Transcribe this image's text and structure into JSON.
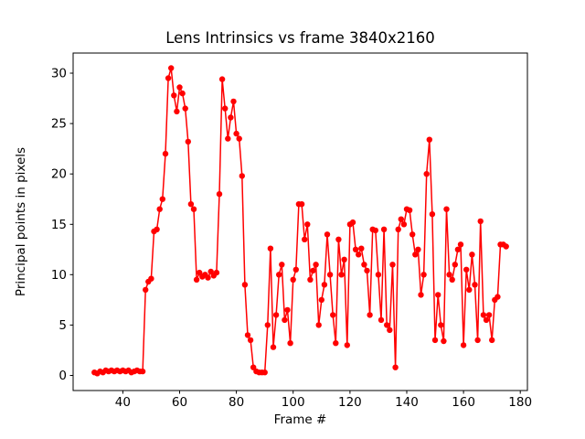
{
  "chart_data": {
    "type": "line",
    "title": "Lens Intrinsics vs frame 3840x2160",
    "xlabel": "Frame #",
    "ylabel": "Principal points in pixels",
    "xlim": [
      22.5,
      182.5
    ],
    "ylim": [
      -1.5,
      32.0
    ],
    "xticks": [
      40,
      60,
      80,
      100,
      120,
      140,
      160,
      180
    ],
    "yticks": [
      0,
      5,
      10,
      15,
      20,
      25,
      30
    ],
    "grid": false,
    "legend": "none",
    "line_color": "#ff0000",
    "marker": "circle",
    "x": [
      30,
      31,
      32,
      33,
      34,
      35,
      36,
      37,
      38,
      39,
      40,
      41,
      42,
      43,
      44,
      45,
      46,
      47,
      48,
      49,
      50,
      51,
      52,
      53,
      54,
      55,
      56,
      57,
      58,
      59,
      60,
      61,
      62,
      63,
      64,
      65,
      66,
      67,
      68,
      69,
      70,
      71,
      72,
      73,
      74,
      75,
      76,
      77,
      78,
      79,
      80,
      81,
      82,
      83,
      84,
      85,
      86,
      87,
      88,
      89,
      90,
      91,
      92,
      93,
      94,
      95,
      96,
      97,
      98,
      99,
      100,
      101,
      102,
      103,
      104,
      105,
      106,
      107,
      108,
      109,
      110,
      111,
      112,
      113,
      114,
      115,
      116,
      117,
      118,
      119,
      120,
      121,
      122,
      123,
      124,
      125,
      126,
      127,
      128,
      129,
      130,
      131,
      132,
      133,
      134,
      135,
      136,
      137,
      138,
      139,
      140,
      141,
      142,
      143,
      144,
      145,
      146,
      147,
      148,
      149,
      150,
      151,
      152,
      153,
      154,
      155,
      156,
      157,
      158,
      159,
      160,
      161,
      162,
      163,
      164,
      165,
      166,
      167,
      168,
      169,
      170,
      171,
      172,
      173,
      174,
      175
    ],
    "y": [
      0.3,
      0.2,
      0.4,
      0.3,
      0.5,
      0.4,
      0.5,
      0.4,
      0.5,
      0.4,
      0.5,
      0.4,
      0.5,
      0.3,
      0.4,
      0.5,
      0.4,
      0.4,
      8.5,
      9.3,
      9.6,
      14.3,
      14.5,
      16.5,
      17.5,
      22.0,
      29.5,
      30.5,
      27.8,
      26.2,
      28.6,
      28.0,
      26.5,
      23.2,
      17.0,
      16.5,
      9.5,
      10.2,
      9.8,
      10.0,
      9.7,
      10.3,
      9.9,
      10.2,
      18.0,
      29.4,
      26.5,
      23.5,
      25.6,
      27.2,
      24.0,
      23.5,
      19.8,
      9.0,
      4.0,
      3.5,
      0.8,
      0.4,
      0.3,
      0.3,
      0.3,
      5.0,
      12.6,
      2.8,
      6.0,
      10.0,
      11.0,
      5.5,
      6.5,
      3.2,
      9.5,
      10.5,
      17.0,
      17.0,
      13.5,
      15.0,
      9.5,
      10.4,
      11.0,
      5.0,
      7.5,
      9.0,
      14.0,
      10.0,
      6.0,
      3.2,
      13.5,
      10.0,
      11.5,
      3.0,
      15.0,
      15.2,
      12.5,
      12.0,
      12.6,
      11.0,
      10.4,
      6.0,
      14.5,
      14.4,
      10.0,
      5.5,
      14.5,
      5.0,
      4.5,
      11.0,
      0.8,
      14.5,
      15.5,
      15.0,
      16.5,
      16.4,
      14.0,
      12.0,
      12.5,
      8.0,
      10.0,
      20.0,
      23.4,
      16.0,
      3.5,
      8.0,
      5.0,
      3.4,
      16.5,
      10.0,
      9.5,
      11.0,
      12.5,
      13.0,
      3.0,
      10.5,
      8.5,
      12.0,
      9.0,
      3.5,
      15.3,
      6.0,
      5.5,
      6.0,
      3.5,
      7.5,
      7.8,
      13.0,
      13.0,
      12.8
    ]
  }
}
